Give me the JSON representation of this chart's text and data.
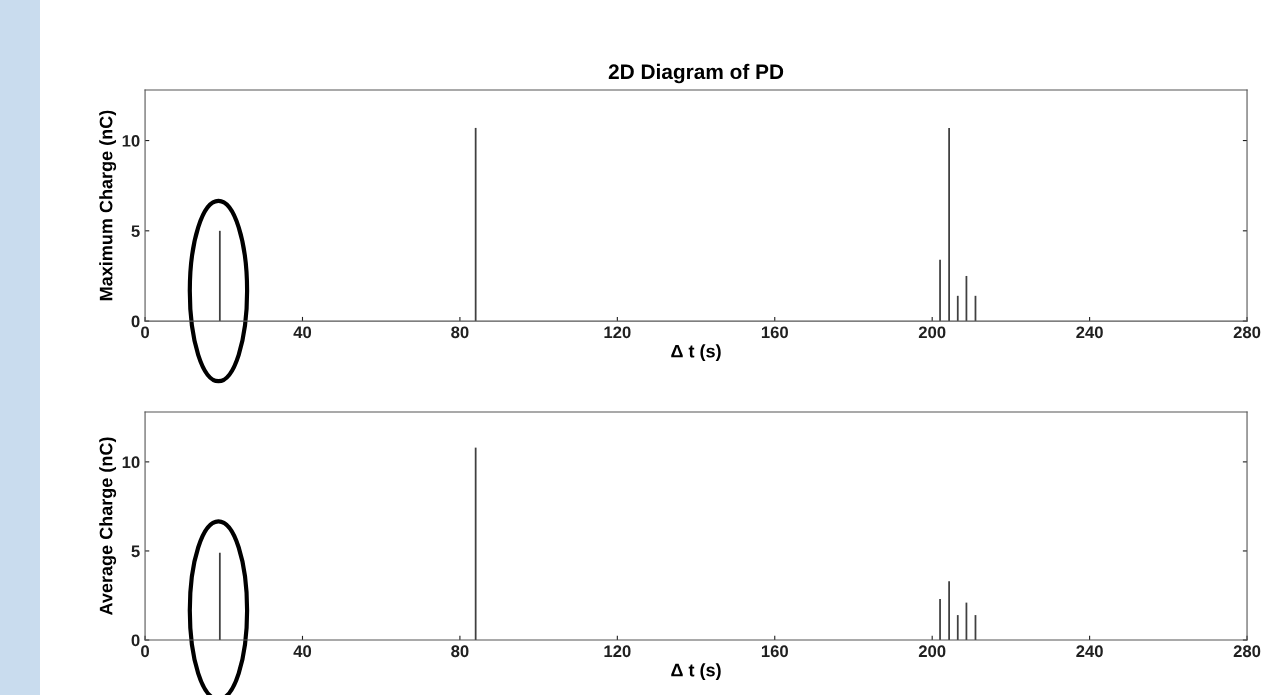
{
  "chart_data": [
    {
      "type": "bar",
      "title": "2D Diagram of PD",
      "xlabel": "Δ t (s)",
      "ylabel": "Maximum Charge (nC)",
      "x": [
        19,
        84,
        202,
        204.3,
        206.5,
        208.7,
        211
      ],
      "series": [
        {
          "color": "#404040",
          "values": [
            5.0,
            10.7,
            3.4,
            10.7,
            1.4,
            2.5,
            1.4
          ]
        }
      ],
      "xlim": [
        0,
        280
      ],
      "xticks": [
        0,
        40,
        80,
        120,
        160,
        200,
        240,
        280
      ],
      "ylim": [
        0,
        12.8
      ],
      "yticks": [
        0,
        5,
        10
      ],
      "grid": false,
      "legend": false
    },
    {
      "type": "bar",
      "xlabel": "Δ t (s)",
      "ylabel": "Average Charge (nC)",
      "x": [
        19,
        84,
        202,
        204.3,
        206.5,
        208.7,
        211
      ],
      "series": [
        {
          "color": "#404040",
          "values": [
            4.9,
            10.8,
            2.3,
            3.3,
            1.4,
            2.1,
            1.4
          ]
        }
      ],
      "xlim": [
        0,
        280
      ],
      "xticks": [
        0,
        40,
        80,
        120,
        160,
        200,
        240,
        280
      ],
      "ylim": [
        0,
        12.8
      ],
      "yticks": [
        0,
        5,
        10
      ],
      "grid": false,
      "legend": false
    }
  ]
}
